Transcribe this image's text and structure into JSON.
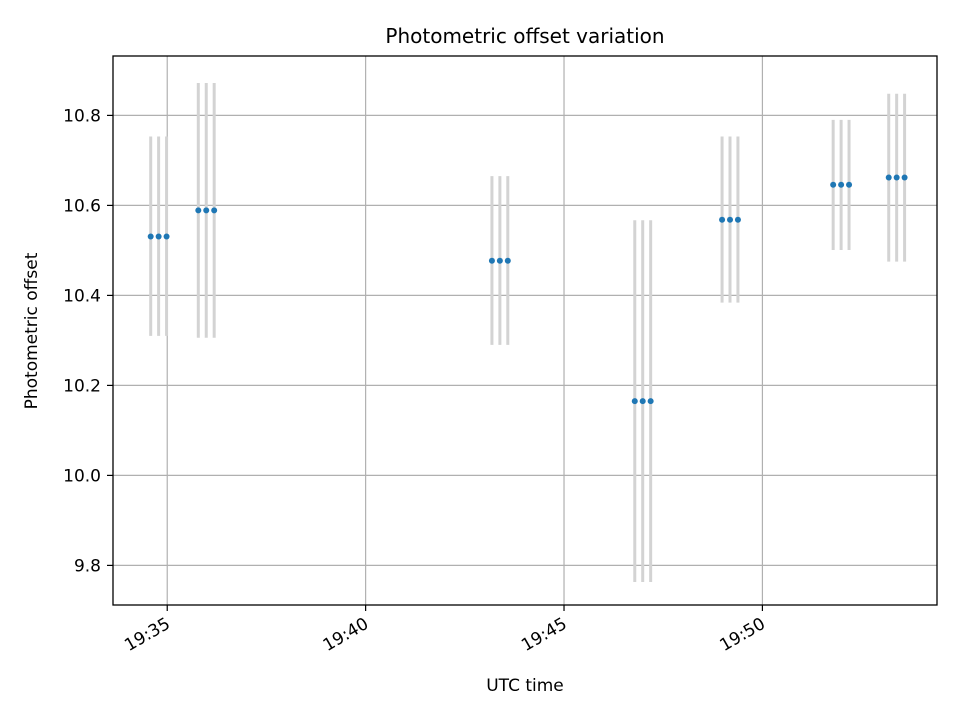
{
  "chart_data": {
    "type": "scatter",
    "title": "Photometric offset variation",
    "xlabel": "UTC time",
    "ylabel": "Photometric offset",
    "xlim": [
      "19:33:38",
      "19:54:24"
    ],
    "ylim": [
      9.712,
      10.932
    ],
    "xticks": [
      "19:35",
      "19:40",
      "19:45",
      "19:50"
    ],
    "yticks": [
      9.8,
      10.0,
      10.2,
      10.4,
      10.6,
      10.8
    ],
    "grid": true,
    "colors": {
      "point": "#1f77b4",
      "errorbar": "#d3d3d3",
      "grid": "#b0b0b0",
      "axes": "#000000"
    },
    "groups": [
      {
        "times": [
          "19:34:35",
          "19:34:47",
          "19:34:59"
        ],
        "y": 10.531,
        "ylow": 10.31,
        "yhigh": 10.753
      },
      {
        "times": [
          "19:35:47",
          "19:35:59",
          "19:36:11"
        ],
        "y": 10.589,
        "ylow": 10.306,
        "yhigh": 10.872
      },
      {
        "times": [
          "19:43:11",
          "19:43:23",
          "19:43:35"
        ],
        "y": 10.477,
        "ylow": 10.29,
        "yhigh": 10.665
      },
      {
        "times": [
          "19:46:47",
          "19:46:59",
          "19:47:11"
        ],
        "y": 10.165,
        "ylow": 9.763,
        "yhigh": 10.567
      },
      {
        "times": [
          "19:48:59",
          "19:49:11",
          "19:49:23"
        ],
        "y": 10.568,
        "ylow": 10.384,
        "yhigh": 10.753
      },
      {
        "times": [
          "19:51:47",
          "19:51:59",
          "19:52:11"
        ],
        "y": 10.646,
        "ylow": 10.501,
        "yhigh": 10.79
      },
      {
        "times": [
          "19:53:11",
          "19:53:23",
          "19:53:35"
        ],
        "y": 10.662,
        "ylow": 10.475,
        "yhigh": 10.848
      }
    ]
  }
}
